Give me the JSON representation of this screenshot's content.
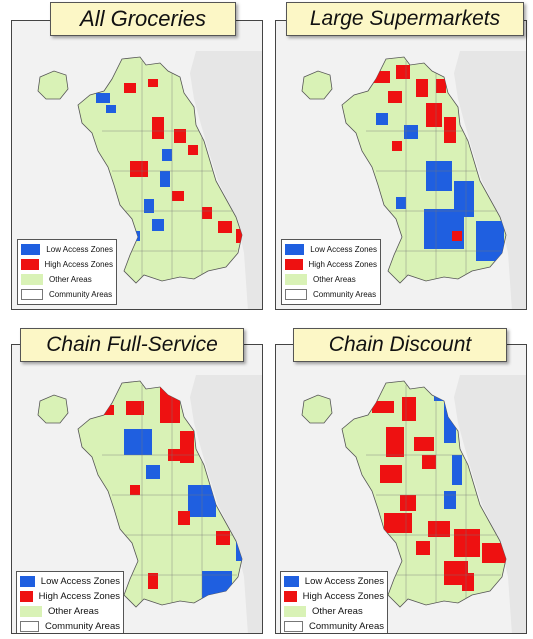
{
  "colors": {
    "low_access": "#1f5fe0",
    "high_access": "#ee1111",
    "other_areas": "#d9f2b6",
    "community_areas": "#ffffff",
    "background": "#f2f2f2",
    "title_bg": "#fcf7c6",
    "lake": "#e6e6e6"
  },
  "legend": {
    "low_access_label": "Low Access Zones",
    "high_access_label": "High Access Zones",
    "other_areas_label": "Other Areas",
    "community_areas_label": "Community Areas"
  },
  "panels": [
    {
      "id": "all-groceries",
      "title": "All Groceries"
    },
    {
      "id": "large-supermarkets",
      "title": "Large Supermarkets"
    },
    {
      "id": "chain-full-service",
      "title": "Chain Full-Service"
    },
    {
      "id": "chain-discount",
      "title": "Chain Discount"
    }
  ]
}
